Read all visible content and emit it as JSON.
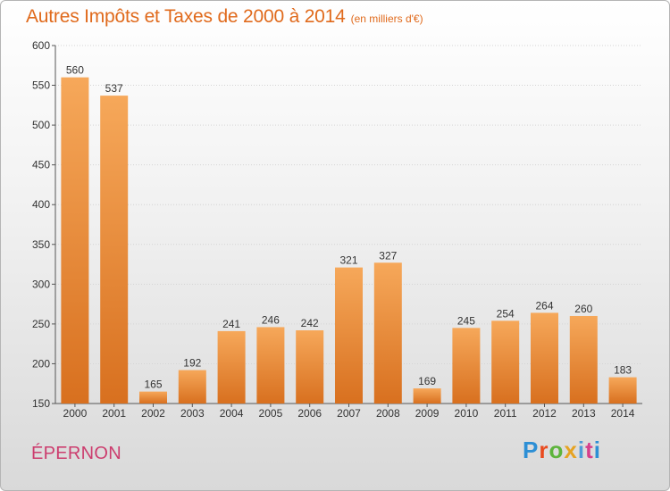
{
  "title": {
    "main": "Autres Impôts et Taxes de 2000 à 2014",
    "unit": "(en milliers d'€)"
  },
  "city": "ÉPERNON",
  "logo": {
    "text": "Proxiti",
    "colors": [
      "#2d8fd5",
      "#e94a1e",
      "#5db43c",
      "#e6a322",
      "#4f9bd8",
      "#d63f8c"
    ]
  },
  "chart_data": {
    "type": "bar",
    "title": "Autres Impôts et Taxes de 2000 à 2014",
    "xlabel": "",
    "ylabel": "",
    "categories": [
      "2000",
      "2001",
      "2002",
      "2003",
      "2004",
      "2005",
      "2006",
      "2007",
      "2008",
      "2009",
      "2010",
      "2011",
      "2012",
      "2013",
      "2014"
    ],
    "values": [
      560,
      537,
      165,
      192,
      241,
      246,
      242,
      321,
      327,
      169,
      245,
      254,
      264,
      260,
      183
    ],
    "ylim": [
      150,
      600
    ],
    "yticks": [
      150,
      200,
      250,
      300,
      350,
      400,
      450,
      500,
      550,
      600
    ],
    "grid": true,
    "bar_color": "#f0923c"
  }
}
